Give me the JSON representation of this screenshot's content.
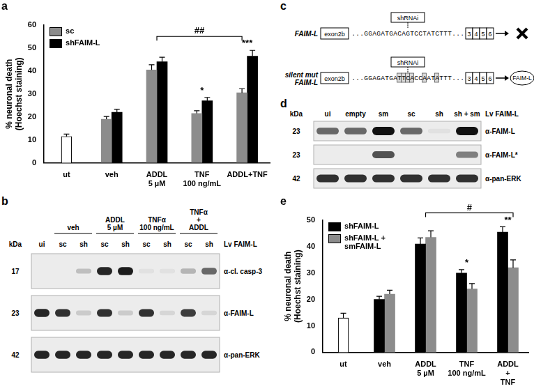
{
  "chart_data": [
    {
      "title": "a",
      "type": "bar",
      "y_label": [
        "% neuronal death",
        "(Hoechst staining)"
      ],
      "categories": [
        "ut",
        "veh",
        [
          "ADDL",
          "5 µM"
        ],
        [
          "TNF",
          "100 ng/mL"
        ],
        "ADDL+TNF"
      ],
      "series": [
        {
          "color": "#ffffff",
          "values": [
            11.5,
            null,
            null,
            null,
            null
          ],
          "errors": [
            1,
            null,
            null,
            null,
            null
          ]
        },
        {
          "name": "sc",
          "color": "#8c8c8c",
          "values": [
            null,
            19,
            40.5,
            21.5,
            30.5
          ],
          "errors": [
            null,
            1.2,
            2.2,
            1.2,
            1.8
          ]
        },
        {
          "name": "shFAIM-L",
          "color": "#000000",
          "values": [
            null,
            22,
            44,
            27,
            46.5
          ],
          "errors": [
            null,
            1.3,
            2,
            1.5,
            2.5
          ]
        }
      ],
      "ylim": [
        0,
        60
      ],
      "yticks": [
        0,
        10,
        20,
        30,
        40,
        50,
        60
      ],
      "grid": false,
      "legend": "upper left",
      "annotations": [
        {
          "text": "*",
          "category": 3
        },
        {
          "text": "***",
          "category": 4
        },
        {
          "text": "##",
          "from_category": 2,
          "to_category": 4,
          "series": "sc"
        }
      ]
    },
    {
      "title": "e",
      "type": "bar",
      "y_label": [
        "% neuronal death",
        "(Hoechst staining)"
      ],
      "categories": [
        "ut",
        "veh",
        [
          "ADDL",
          "5 µM"
        ],
        [
          "TNF",
          "100 ng/mL"
        ],
        [
          "ADDL",
          "+",
          "TNF"
        ]
      ],
      "series": [
        {
          "color": "#ffffff",
          "values": [
            13,
            null,
            null,
            null,
            null
          ],
          "errors": [
            1.8,
            null,
            null,
            null,
            null
          ]
        },
        {
          "name": "shFAIM-L",
          "color": "#000000",
          "values": [
            null,
            20,
            41,
            30,
            45.5
          ],
          "errors": [
            null,
            1.2,
            2.3,
            1.3,
            2
          ]
        },
        {
          "name": "shFAIM-L + smFAIM-L",
          "color": "#8c8c8c",
          "values": [
            null,
            22,
            43.5,
            24,
            32
          ],
          "errors": [
            null,
            1.5,
            2.5,
            2,
            3
          ]
        }
      ],
      "ylim": [
        0,
        50
      ],
      "yticks": [
        0,
        10,
        20,
        30,
        40,
        50
      ],
      "grid": false,
      "legend": "upper left",
      "annotations": [
        {
          "text": "*",
          "category": 3
        },
        {
          "text": "**",
          "category": 4
        },
        {
          "text": "#",
          "from_category": 2,
          "to_category": 4,
          "series": "shFAIM-L + smFAIM-L"
        }
      ]
    }
  ],
  "panel_b": {
    "title": "b",
    "kda_header": "kDa",
    "group_labels": [
      {
        "lines": [
          "veh"
        ],
        "lanes": [
          1,
          2
        ]
      },
      {
        "lines": [
          "ADDL",
          "5 µM"
        ],
        "lanes": [
          3,
          4
        ]
      },
      {
        "lines": [
          "TNFα",
          "100 ng/mL"
        ],
        "lanes": [
          5,
          6
        ]
      },
      {
        "lines": [
          "TNFα",
          "+",
          "ADDL"
        ],
        "lanes": [
          7,
          8
        ]
      }
    ],
    "lane_labels": [
      "ui",
      "sc",
      "sh",
      "sc",
      "sh",
      "sc",
      "sh",
      "sc",
      "sh"
    ],
    "lane_group_label": "Lv FAIM-L",
    "rows": [
      {
        "kda": 17,
        "antibody": "α-cl. casp-3",
        "bands": [
          0,
          0,
          0.2,
          0.9,
          0.95,
          0.05,
          0.05,
          0.25,
          0.6
        ]
      },
      {
        "kda": 23,
        "antibody": "α-FAIM-L",
        "bands": [
          0.9,
          0.85,
          0.15,
          0.85,
          0.15,
          0.85,
          0.1,
          0.8,
          0.1
        ]
      },
      {
        "kda": 42,
        "antibody": "α-pan-ERK",
        "bands": [
          0.9,
          0.9,
          0.9,
          0.9,
          0.9,
          0.9,
          0.9,
          0.9,
          0.9
        ]
      }
    ]
  },
  "panel_c": {
    "title": "c",
    "rows": [
      {
        "label": [
          "FAIM-L"
        ],
        "exon": "exon2b",
        "sequence": "...GGAGATGACAGTCCTATCTTT...",
        "probe": "shRNAi",
        "exons": [
          "3",
          "4",
          "5",
          "6"
        ]
      },
      {
        "label": [
          "silent mut",
          "FAIM-L"
        ],
        "exon": "exon2b",
        "sequence": "...GGAGATGATTCACCAATATTT...",
        "probe": "shRNAi",
        "exons": [
          "3",
          "4",
          "5",
          "6"
        ],
        "product": "FAIM-L"
      }
    ]
  },
  "panel_d": {
    "title": "d",
    "kda_header": "kDa",
    "lane_labels": [
      "ui",
      "empty",
      "sm",
      "sc",
      "sh",
      "sh + sm"
    ],
    "lane_group_label": "Lv FAIM-L",
    "rows": [
      {
        "kda": 23,
        "antibody": "α-FAIM-L",
        "bands": [
          0.6,
          0.6,
          1,
          0.6,
          0.05,
          1
        ]
      },
      {
        "kda": 23,
        "antibody": "α-FAIM-L*",
        "bands": [
          0,
          0,
          0.7,
          0,
          0,
          0.5
        ]
      },
      {
        "kda": 42,
        "antibody": "α-pan-ERK",
        "bands": [
          0.85,
          0.85,
          0.85,
          0.85,
          0.85,
          0.85
        ]
      }
    ]
  }
}
